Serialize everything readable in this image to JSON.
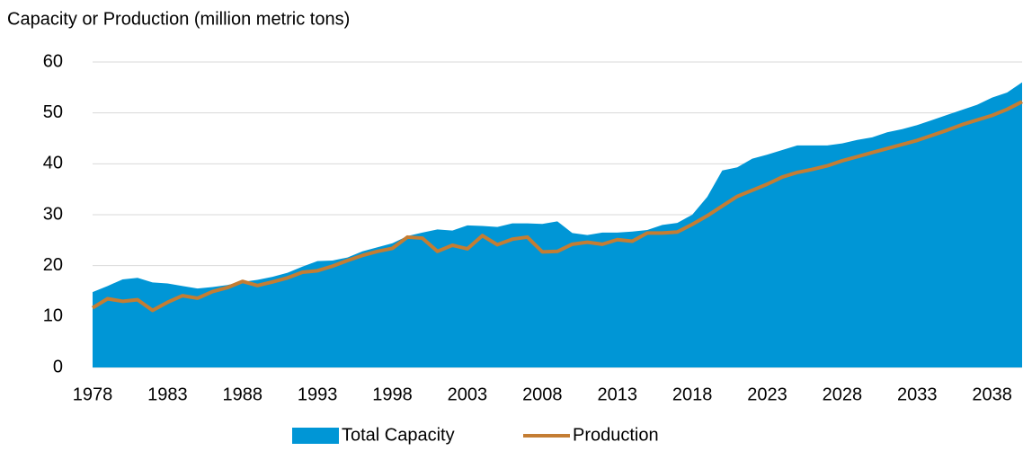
{
  "chart_data": {
    "type": "combo",
    "y_label": "Capacity or Production (million metric tons)",
    "x": [
      1978,
      1979,
      1980,
      1981,
      1982,
      1983,
      1984,
      1985,
      1986,
      1987,
      1988,
      1989,
      1990,
      1991,
      1992,
      1993,
      1994,
      1995,
      1996,
      1997,
      1998,
      1999,
      2000,
      2001,
      2002,
      2003,
      2004,
      2005,
      2006,
      2007,
      2008,
      2009,
      2010,
      2011,
      2012,
      2013,
      2014,
      2015,
      2016,
      2017,
      2018,
      2019,
      2020,
      2021,
      2022,
      2023,
      2024,
      2025,
      2026,
      2027,
      2028,
      2029,
      2030,
      2031,
      2032,
      2033,
      2034,
      2035,
      2036,
      2037,
      2038,
      2039,
      2040
    ],
    "xlim": [
      1978,
      2040
    ],
    "xticks": [
      1978,
      1983,
      1988,
      1993,
      1998,
      2003,
      2008,
      2013,
      2018,
      2023,
      2028,
      2033,
      2038
    ],
    "ylim": [
      0,
      60
    ],
    "yticks": [
      0,
      10,
      20,
      30,
      40,
      50,
      60
    ],
    "grid": true,
    "legend": "bottom",
    "series": [
      {
        "name": "Total Capacity",
        "type": "area",
        "color": "#0096d6",
        "values": [
          14.8,
          16,
          17.3,
          17.6,
          16.7,
          16.5,
          16,
          15.5,
          15.8,
          16.2,
          16.8,
          17.2,
          17.8,
          18.6,
          19.8,
          20.9,
          21,
          21.6,
          22.8,
          23.6,
          24.4,
          25.8,
          26.5,
          27.1,
          26.9,
          27.9,
          27.8,
          27.6,
          28.3,
          28.3,
          28.2,
          28.7,
          26.4,
          26,
          26.5,
          26.5,
          26.7,
          27,
          28,
          28.4,
          30,
          33.5,
          38.7,
          39.3,
          41,
          41.8,
          42.7,
          43.6,
          43.6,
          43.6,
          44,
          44.7,
          45.2,
          46.2,
          46.8,
          47.6,
          48.6,
          49.6,
          50.6,
          51.6,
          53,
          54,
          56
        ]
      },
      {
        "name": "Production",
        "type": "line",
        "color": "#c47d33",
        "values": [
          11.7,
          13.5,
          13,
          13.3,
          11.2,
          12.8,
          14.1,
          13.6,
          14.9,
          15.7,
          16.9,
          16.1,
          16.8,
          17.6,
          18.7,
          19,
          19.9,
          21,
          22,
          22.8,
          23.4,
          25.6,
          25.4,
          22.8,
          24,
          23.3,
          25.9,
          24.1,
          25.2,
          25.6,
          22.7,
          22.8,
          24.2,
          24.6,
          24.2,
          25.1,
          24.8,
          26.4,
          26.4,
          26.6,
          28.1,
          29.8,
          31.7,
          33.6,
          34.8,
          36,
          37.4,
          38.3,
          38.9,
          39.6,
          40.6,
          41.4,
          42.2,
          43,
          43.8,
          44.6,
          45.6,
          46.6,
          47.7,
          48.6,
          49.5,
          50.7,
          52.2
        ]
      }
    ]
  }
}
